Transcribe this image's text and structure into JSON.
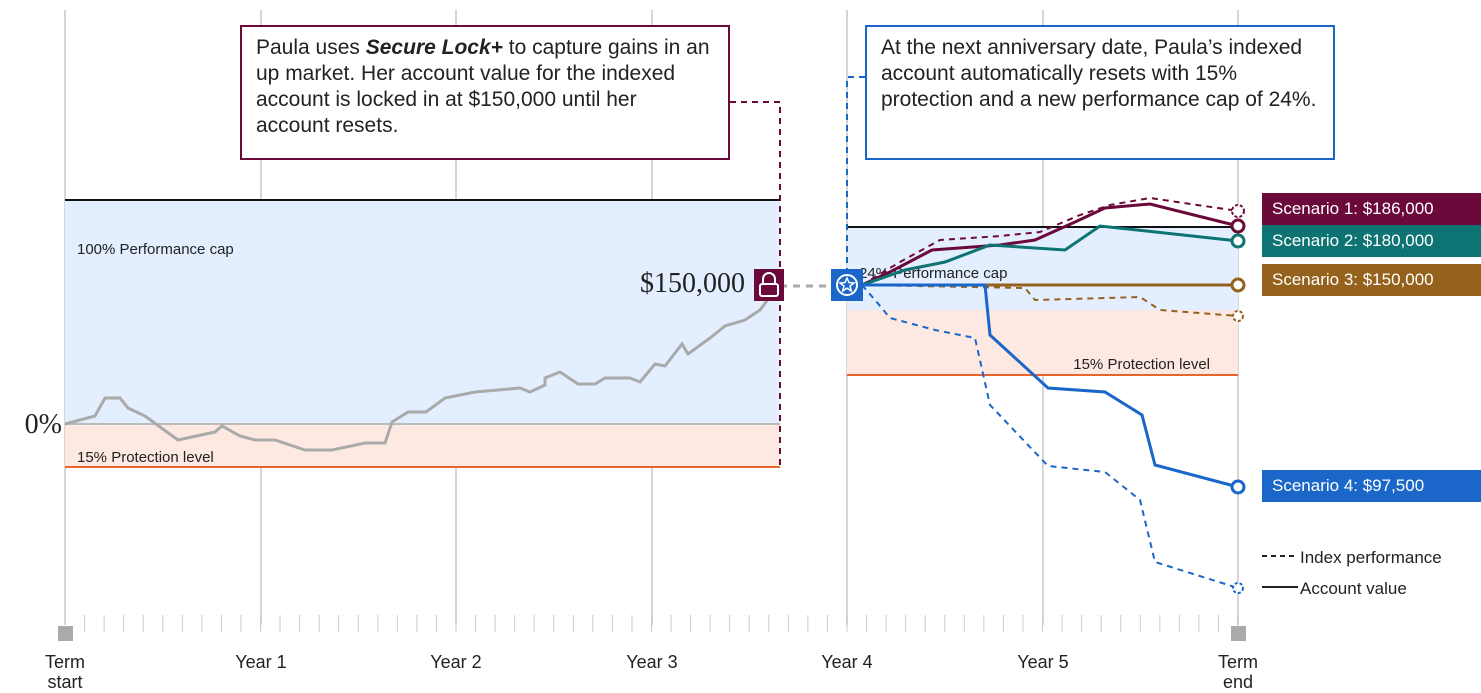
{
  "callout_lock": {
    "before": "Paula uses ",
    "emphasis": "Secure Lock+",
    "after": " to capture gains in an up market. Her account value for the indexed account is locked in at $150,000 until her account resets."
  },
  "callout_reset": "At the next anniversary date, Paula’s indexed account automatically resets with 15% protection and a new performance cap of 24%.",
  "zones": {
    "first_cap": "100% Performance cap",
    "first_protection": "15% Protection level",
    "second_cap": "24% Performance cap",
    "second_protection": "15% Protection level"
  },
  "lock_value": "$150,000",
  "zero": "0%",
  "scenarios": [
    "Scenario 1: $186,000",
    "Scenario 2: $180,000",
    "Scenario 3: $150,000",
    "Scenario 4: $97,500"
  ],
  "legend": {
    "dashed": "Index performance",
    "solid": "Account value"
  },
  "timeline": {
    "start": [
      "Term",
      "start"
    ],
    "years": [
      "Year 1",
      "Year 2",
      "Year 3",
      "Year 4",
      "Year 5"
    ],
    "end": [
      "Term",
      "end"
    ]
  }
}
